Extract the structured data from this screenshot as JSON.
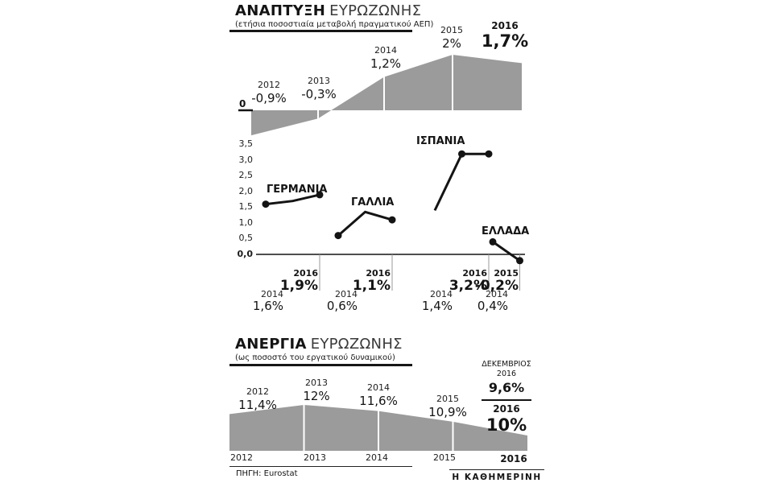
{
  "colors": {
    "area": "#9b9b9b",
    "ink": "#141414"
  },
  "footer": {
    "source": "ΠΗΓΗ: Eurostat",
    "credit": "Η ΚΑΘΗΜΕΡΙΝΗ"
  },
  "chart_data": [
    {
      "id": "eurozone-growth",
      "type": "area",
      "title_bold": "ΑΝΑΠΤΥΞΗ",
      "title_light": "ΕΥΡΩΖΩΝΗΣ",
      "subtitle": "(ετήσια ποσοστιαία μεταβολή πραγματικού ΑΕΠ)",
      "zero_label": "0",
      "categories": [
        "2012",
        "2013",
        "2014",
        "2015",
        "2016"
      ],
      "values": [
        -0.9,
        -0.3,
        1.2,
        2.0,
        1.7
      ],
      "value_labels": [
        "-0,9%",
        "-0,3%",
        "1,2%",
        "2%",
        "1,7%"
      ],
      "ylim": [
        -1.2,
        2.4
      ],
      "baseline": 0
    },
    {
      "id": "country-gdp-growth",
      "type": "line",
      "x_years": [
        2014,
        2015,
        2016
      ],
      "yticks": [
        "3,5",
        "3,0",
        "2,5",
        "2,0",
        "1,5",
        "1,0",
        "0,5",
        "0,0"
      ],
      "ylim": [
        -0.6,
        3.5
      ],
      "series": [
        {
          "name": "ΓΕΡΜΑΝΙΑ",
          "values": [
            1.6,
            1.7,
            1.9
          ],
          "dot_indices": [
            0,
            2
          ],
          "start": {
            "year": "2014",
            "label": "1,6%"
          },
          "end": {
            "year": "2016",
            "label": "1,9%"
          }
        },
        {
          "name": "ΓΑΛΛΙΑ",
          "values": [
            0.6,
            1.35,
            1.1
          ],
          "dot_indices": [
            0,
            2
          ],
          "start": {
            "year": "2014",
            "label": "0,6%"
          },
          "end": {
            "year": "2016",
            "label": "1,1%"
          }
        },
        {
          "name": "ΙΣΠΑΝΙΑ",
          "values": [
            1.4,
            3.2,
            3.2
          ],
          "dot_indices": [
            1,
            2
          ],
          "start": {
            "year": "2014",
            "label": "1,4%"
          },
          "end": {
            "year": "2016",
            "label": "3,2%"
          }
        },
        {
          "name": "ΕΛΛΑΔΑ",
          "values": [
            0.4,
            -0.2
          ],
          "dot_indices": [
            0,
            1
          ],
          "start": {
            "year": "2014",
            "label": "0,4%"
          },
          "end": {
            "year": "2015",
            "label": "-0,2%"
          }
        }
      ]
    },
    {
      "id": "eurozone-unemployment",
      "type": "area",
      "title_bold": "ΑΝΕΡΓΙΑ",
      "title_light": "ΕΥΡΩΖΩΝΗΣ",
      "subtitle": "(ως ποσοστό του εργατικού δυναμικού)",
      "categories": [
        "2012",
        "2013",
        "2014",
        "2015",
        "2016"
      ],
      "values": [
        11.4,
        12.0,
        11.6,
        10.9,
        10.0
      ],
      "value_labels": [
        "11,4%",
        "12%",
        "11,6%",
        "10,9%"
      ],
      "december": {
        "line1": "ΔΕΚΕΜΒΡΙΟΣ",
        "line2": "2016",
        "value": "9,6%",
        "final_year": "2016",
        "final_label": "10%"
      },
      "ylim": [
        9,
        12.5
      ]
    }
  ]
}
